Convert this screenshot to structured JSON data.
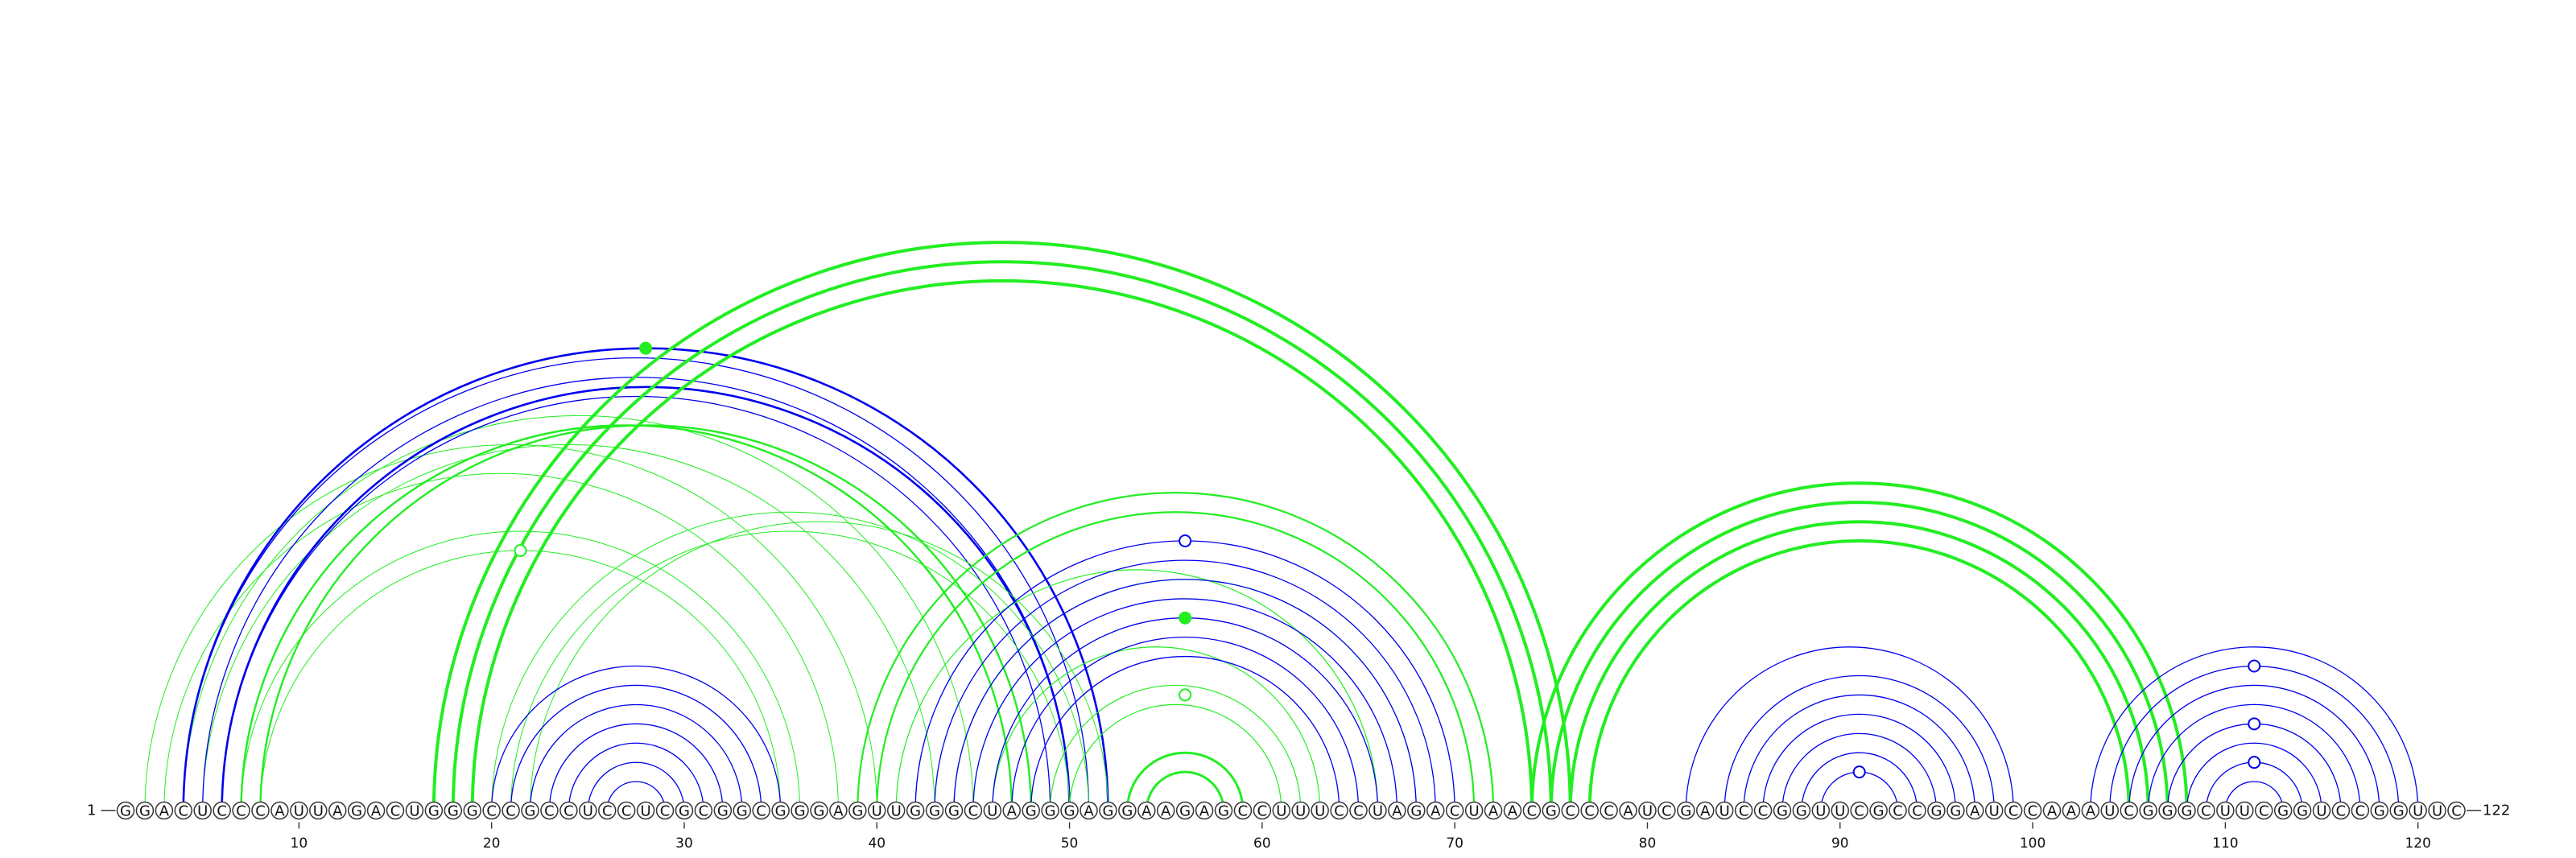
{
  "diagram": {
    "type": "rna-arc-diagram",
    "sequence": "GGACUCCCAUUAGACUGGGCCGCCUCCUCGCGGCGGGAGUUGGGCUAGGGAGGAAGAGCCUUUCCUAGACUAACGCCCAUCGAUCCGGUUCGCCGGAUCCAAAUCGGGCUUCGGUCCGGUUC",
    "start_label": "1",
    "end_label": "122",
    "ticks": [
      10,
      20,
      30,
      40,
      50,
      60,
      70,
      80,
      90,
      100,
      110,
      120
    ],
    "colors": {
      "blue": "#0000ee",
      "green": "#22ee22"
    },
    "arcs": [
      {
        "color": "green",
        "i": 3,
        "j": 38,
        "w": 1
      },
      {
        "color": "green",
        "i": 2,
        "j": 40,
        "w": 1
      },
      {
        "color": "green",
        "i": 7,
        "j": 36,
        "w": 1
      },
      {
        "color": "green",
        "i": 8,
        "j": 35,
        "w": 1
      },
      {
        "color": "green",
        "i": 5,
        "j": 43,
        "w": 1
      },
      {
        "color": "green",
        "i": 4,
        "j": 45,
        "w": 1
      },
      {
        "color": "blue",
        "i": 4,
        "j": 51,
        "w": 1.3
      },
      {
        "color": "blue",
        "i": 5,
        "j": 50,
        "w": 1.3
      },
      {
        "color": "blue",
        "i": 6,
        "j": 49,
        "w": 1.3
      },
      {
        "color": "blue",
        "i": 4,
        "j": 52,
        "w": 2.6
      },
      {
        "color": "blue",
        "i": 6,
        "j": 50,
        "w": 2.6
      },
      {
        "color": "green",
        "i": 7,
        "j": 47,
        "w": 2.4
      },
      {
        "color": "green",
        "i": 8,
        "j": 48,
        "w": 2.4
      },
      {
        "color": "green",
        "i": 17,
        "j": 76,
        "w": 4
      },
      {
        "color": "green",
        "i": 18,
        "j": 75,
        "w": 4
      },
      {
        "color": "green",
        "i": 19,
        "j": 74,
        "w": 4
      },
      {
        "color": "green",
        "i": 20,
        "j": 51,
        "w": 1
      },
      {
        "color": "green",
        "i": 21,
        "j": 50,
        "w": 1
      },
      {
        "color": "green",
        "i": 22,
        "j": 52,
        "w": 1
      },
      {
        "color": "blue",
        "i": 20,
        "j": 35,
        "w": 1.3
      },
      {
        "color": "blue",
        "i": 21,
        "j": 34,
        "w": 1.3
      },
      {
        "color": "blue",
        "i": 22,
        "j": 33,
        "w": 1.3
      },
      {
        "color": "blue",
        "i": 23,
        "j": 32,
        "w": 1.3
      },
      {
        "color": "blue",
        "i": 24,
        "j": 31,
        "w": 1.3
      },
      {
        "color": "blue",
        "i": 25,
        "j": 30,
        "w": 1.3
      },
      {
        "color": "blue",
        "i": 26,
        "j": 29,
        "w": 1.3
      },
      {
        "color": "green",
        "i": 39,
        "j": 72,
        "w": 2.2
      },
      {
        "color": "green",
        "i": 40,
        "j": 71,
        "w": 2.2
      },
      {
        "color": "green",
        "i": 41,
        "j": 66,
        "w": 1.2
      },
      {
        "color": "green",
        "i": 44,
        "j": 68,
        "w": 1.2
      },
      {
        "color": "green",
        "i": 46,
        "j": 63,
        "w": 1.2
      },
      {
        "color": "green",
        "i": 49,
        "j": 62,
        "w": 1.2
      },
      {
        "color": "green",
        "i": 50,
        "j": 61,
        "w": 1.2
      },
      {
        "color": "blue",
        "i": 42,
        "j": 70,
        "w": 1.3
      },
      {
        "color": "blue",
        "i": 43,
        "j": 69,
        "w": 1.3
      },
      {
        "color": "blue",
        "i": 44,
        "j": 68,
        "w": 1.3
      },
      {
        "color": "blue",
        "i": 45,
        "j": 67,
        "w": 1.3
      },
      {
        "color": "blue",
        "i": 46,
        "j": 66,
        "w": 1.3
      },
      {
        "color": "blue",
        "i": 47,
        "j": 65,
        "w": 1.3
      },
      {
        "color": "blue",
        "i": 48,
        "j": 64,
        "w": 1.3
      },
      {
        "color": "green",
        "i": 53,
        "j": 59,
        "w": 3
      },
      {
        "color": "green",
        "i": 54,
        "j": 58,
        "w": 3
      },
      {
        "color": "green",
        "i": 74,
        "j": 108,
        "w": 4
      },
      {
        "color": "green",
        "i": 75,
        "j": 107,
        "w": 4
      },
      {
        "color": "green",
        "i": 76,
        "j": 106,
        "w": 4
      },
      {
        "color": "green",
        "i": 77,
        "j": 105,
        "w": 4
      },
      {
        "color": "blue",
        "i": 82,
        "j": 99,
        "w": 1.3
      },
      {
        "color": "blue",
        "i": 84,
        "j": 98,
        "w": 1.3
      },
      {
        "color": "blue",
        "i": 85,
        "j": 97,
        "w": 1.3
      },
      {
        "color": "blue",
        "i": 86,
        "j": 96,
        "w": 1.3
      },
      {
        "color": "blue",
        "i": 87,
        "j": 95,
        "w": 1.3
      },
      {
        "color": "blue",
        "i": 88,
        "j": 94,
        "w": 1.3
      },
      {
        "color": "blue",
        "i": 89,
        "j": 93,
        "w": 1.3
      },
      {
        "color": "blue",
        "i": 103,
        "j": 120,
        "w": 1.3
      },
      {
        "color": "blue",
        "i": 104,
        "j": 119,
        "w": 1.3
      },
      {
        "color": "blue",
        "i": 105,
        "j": 118,
        "w": 1.3
      },
      {
        "color": "blue",
        "i": 106,
        "j": 117,
        "w": 1.3
      },
      {
        "color": "blue",
        "i": 107,
        "j": 116,
        "w": 1.3
      },
      {
        "color": "blue",
        "i": 108,
        "j": 115,
        "w": 1.3
      },
      {
        "color": "blue",
        "i": 109,
        "j": 114,
        "w": 1.3
      },
      {
        "color": "blue",
        "i": 110,
        "j": 113,
        "w": 1.3
      }
    ],
    "markers": [
      {
        "color": "green",
        "filled": true,
        "i": 4,
        "j": 52
      },
      {
        "color": "green",
        "filled": false,
        "i": 8,
        "j": 35
      },
      {
        "color": "blue",
        "filled": false,
        "i": 42,
        "j": 70
      },
      {
        "color": "green",
        "filled": true,
        "i": 46,
        "j": 66
      },
      {
        "color": "green",
        "filled": false,
        "i": 50,
        "j": 62
      },
      {
        "color": "blue",
        "filled": false,
        "i": 89,
        "j": 93
      },
      {
        "color": "blue",
        "filled": false,
        "i": 104,
        "j": 119
      },
      {
        "color": "blue",
        "filled": false,
        "i": 107,
        "j": 116
      },
      {
        "color": "blue",
        "filled": false,
        "i": 109,
        "j": 114
      }
    ]
  }
}
